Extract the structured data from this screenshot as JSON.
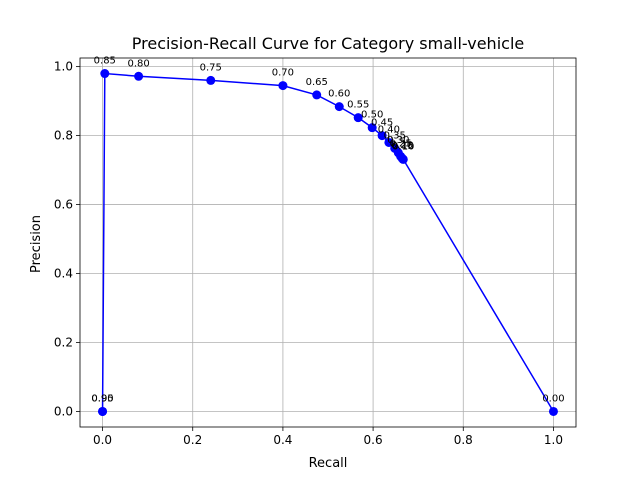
{
  "chart_data": {
    "type": "line",
    "title": "Precision-Recall Curve for Category small-vehicle",
    "xlabel": "Recall",
    "ylabel": "Precision",
    "xlim": [
      -0.05,
      1.05
    ],
    "ylim": [
      -0.045,
      1.025
    ],
    "xticks": [
      "0.0",
      "0.2",
      "0.4",
      "0.6",
      "0.8",
      "1.0"
    ],
    "yticks": [
      "0.0",
      "0.2",
      "0.4",
      "0.6",
      "0.8",
      "1.0"
    ],
    "grid": true,
    "series": [
      {
        "color": "#0000ff",
        "marker": "circle",
        "points": [
          {
            "x": 0.0,
            "y": 0.0,
            "label": "0.95"
          },
          {
            "x": 0.0,
            "y": 0.0,
            "label": "0.90"
          },
          {
            "x": 0.005,
            "y": 0.98,
            "label": "0.85"
          },
          {
            "x": 0.08,
            "y": 0.972,
            "label": "0.80"
          },
          {
            "x": 0.24,
            "y": 0.96,
            "label": "0.75"
          },
          {
            "x": 0.4,
            "y": 0.945,
            "label": "0.70"
          },
          {
            "x": 0.475,
            "y": 0.918,
            "label": "0.65"
          },
          {
            "x": 0.525,
            "y": 0.884,
            "label": "0.60"
          },
          {
            "x": 0.567,
            "y": 0.852,
            "label": "0.55"
          },
          {
            "x": 0.598,
            "y": 0.823,
            "label": "0.50"
          },
          {
            "x": 0.62,
            "y": 0.8,
            "label": "0.45"
          },
          {
            "x": 0.635,
            "y": 0.78,
            "label": "0.40"
          },
          {
            "x": 0.648,
            "y": 0.763,
            "label": "0.35"
          },
          {
            "x": 0.656,
            "y": 0.75,
            "label": "0.30"
          },
          {
            "x": 0.661,
            "y": 0.74,
            "label": "0.25"
          },
          {
            "x": 0.664,
            "y": 0.735,
            "label": "0.20"
          },
          {
            "x": 0.666,
            "y": 0.732,
            "label": "0.15"
          },
          {
            "x": 0.667,
            "y": 0.731,
            "label": "0.10"
          },
          {
            "x": 1.0,
            "y": 0.0,
            "label": "0.00"
          }
        ]
      }
    ]
  }
}
